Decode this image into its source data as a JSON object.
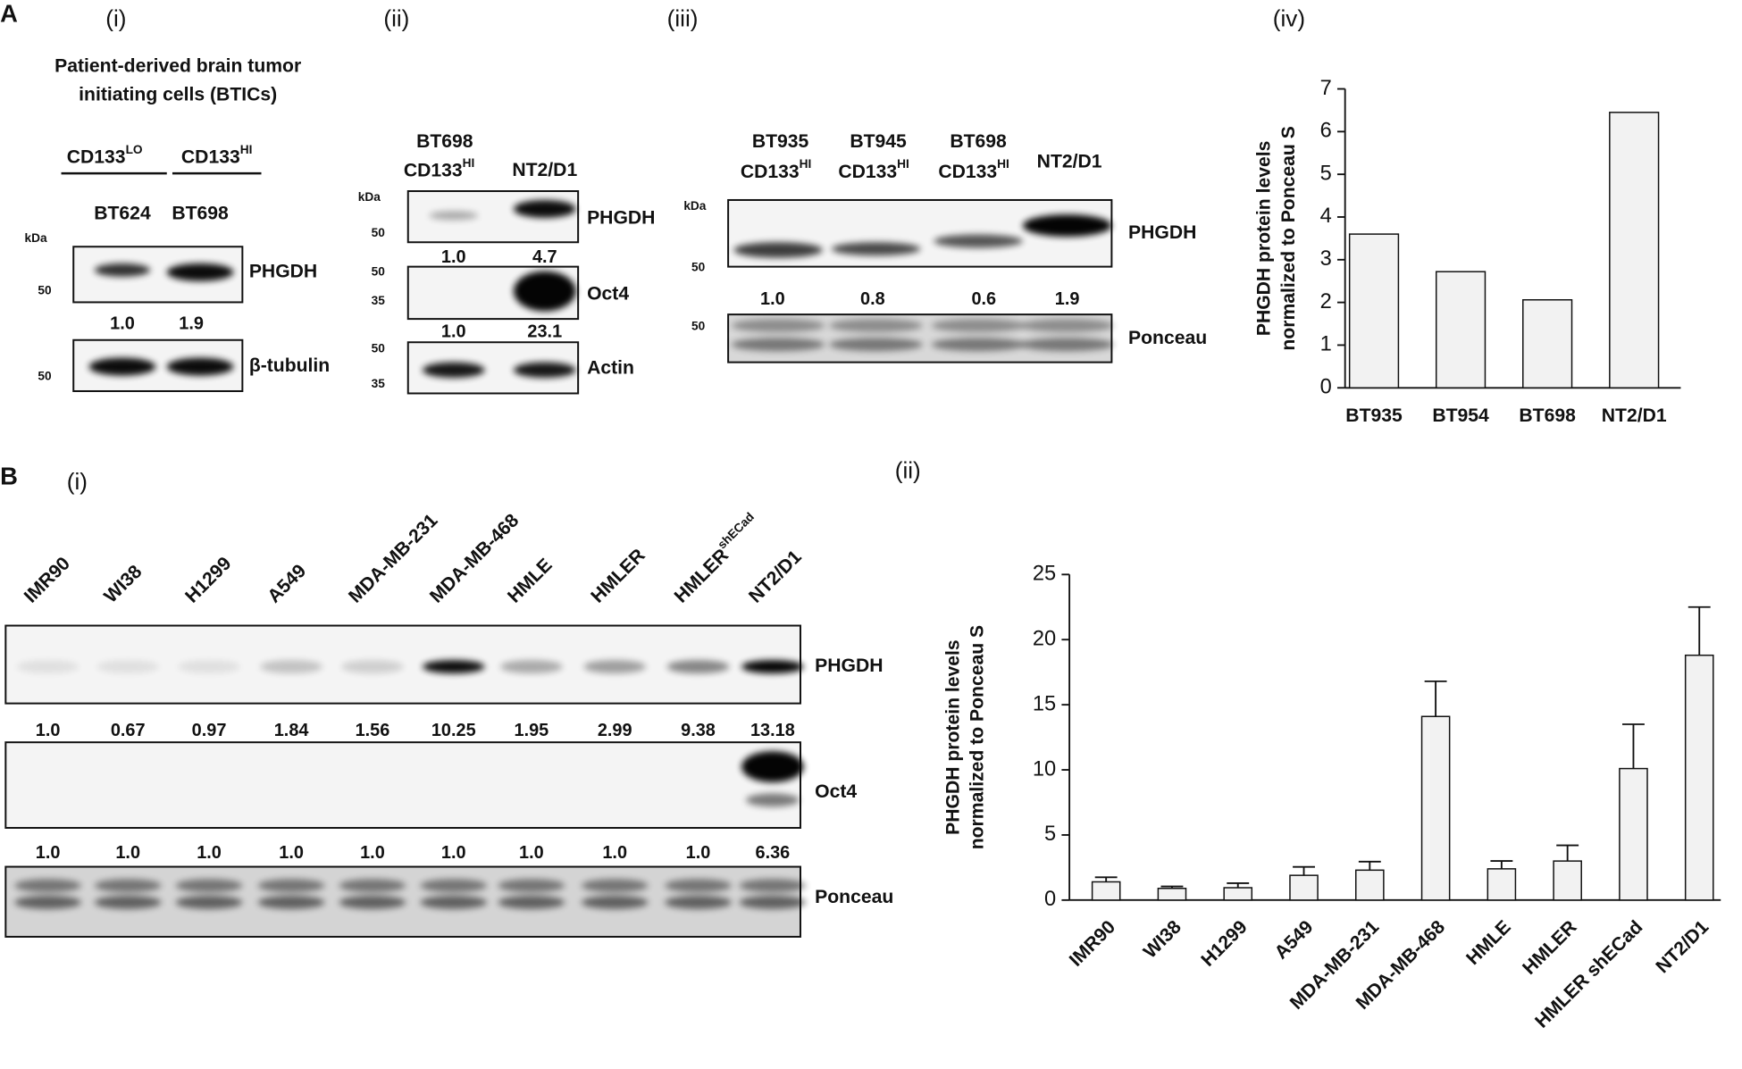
{
  "figure": {
    "A": {
      "label": "A",
      "i": {
        "label": "(i)",
        "title": [
          "Patient-derived  brain tumor",
          "initiating cells (BTICs)"
        ],
        "groups": [
          {
            "text": "CD133",
            "sup": "LO"
          },
          {
            "text": "CD133",
            "sup": "HI"
          }
        ],
        "lanes": [
          "BT624",
          "BT698"
        ],
        "kda": "kDa",
        "blots": [
          {
            "protein": "PHGDH",
            "markers": [
              "50"
            ],
            "quant": [
              "1.0",
              "1.9"
            ]
          },
          {
            "protein": "β-tubulin",
            "markers": [
              "50"
            ]
          }
        ]
      },
      "ii": {
        "label": "(ii)",
        "lanes": [
          {
            "line1": "BT698",
            "text": "CD133",
            "sup": "HI"
          },
          {
            "text": "NT2/D1"
          }
        ],
        "kda": "kDa",
        "blots": [
          {
            "protein": "PHGDH",
            "markers": [
              "50"
            ],
            "quant": [
              "1.0",
              "4.7"
            ]
          },
          {
            "protein": "Oct4",
            "markers": [
              "50",
              "35"
            ],
            "quant": [
              "1.0",
              "23.1"
            ]
          },
          {
            "protein": "Actin",
            "markers": [
              "50",
              "35"
            ]
          }
        ]
      },
      "iii": {
        "label": "(iii)",
        "lanes": [
          {
            "line1": "BT935",
            "text": "CD133",
            "sup": "HI"
          },
          {
            "line1": "BT945",
            "text": "CD133",
            "sup": "HI"
          },
          {
            "line1": "BT698",
            "text": "CD133",
            "sup": "HI"
          },
          {
            "text": "NT2/D1"
          }
        ],
        "kda": "kDa",
        "blots": [
          {
            "protein": "PHGDH",
            "markers": [
              "50"
            ],
            "quant": [
              "1.0",
              "0.8",
              "0.6",
              "1.9"
            ]
          },
          {
            "protein": "Ponceau",
            "markers": [
              "50"
            ]
          }
        ]
      },
      "iv": {
        "label": "(iv)"
      }
    },
    "B": {
      "label": "B",
      "i": {
        "label": "(i)",
        "lanes": [
          {
            "text": "IMR90"
          },
          {
            "text": "WI38"
          },
          {
            "text": "H1299"
          },
          {
            "text": "A549"
          },
          {
            "text": "MDA-MB-231"
          },
          {
            "text": "MDA-MB-468"
          },
          {
            "text": "HMLE"
          },
          {
            "text": "HMLER"
          },
          {
            "text": "HMLER",
            "sup": "shECad"
          },
          {
            "text": "NT2/D1"
          }
        ],
        "blots": [
          {
            "protein": "PHGDH",
            "quant": [
              "1.0",
              "0.67",
              "0.97",
              "1.84",
              "1.56",
              "10.25",
              "1.95",
              "2.99",
              "9.38",
              "13.18"
            ]
          },
          {
            "protein": "Oct4",
            "quant": [
              "1.0",
              "1.0",
              "1.0",
              "1.0",
              "1.0",
              "1.0",
              "1.0",
              "1.0",
              "1.0",
              "6.36"
            ]
          },
          {
            "protein": "Ponceau"
          }
        ]
      },
      "ii": {
        "label": "(ii)"
      }
    }
  },
  "chart_data": [
    {
      "type": "bar",
      "ylabel": [
        "PHGDH protein levels",
        "normalized to Ponceau S"
      ],
      "categories": [
        "BT935",
        "BT954",
        "BT698",
        "NT2/D1"
      ],
      "values": [
        3.6,
        2.72,
        2.06,
        6.45
      ],
      "color": "#f2f2f2",
      "ylim": [
        0,
        7
      ],
      "yticks": [
        0,
        1,
        2,
        3,
        4,
        5,
        6,
        7
      ]
    },
    {
      "type": "bar",
      "ylabel": [
        "PHGDH protein levels",
        "normalized to Ponceau S"
      ],
      "categories": [
        "IMR90",
        "WI38",
        "H1299",
        "A549",
        "MDA-MB-231",
        "MDA-MB-468",
        "HMLE",
        "HMLER",
        "HMLER shECad",
        "NT2/D1"
      ],
      "values": [
        1.4,
        0.9,
        0.95,
        1.9,
        2.3,
        14.1,
        2.4,
        3.0,
        10.1,
        18.8
      ],
      "errors": [
        0.35,
        0.15,
        0.35,
        0.65,
        0.65,
        2.7,
        0.6,
        1.2,
        3.4,
        3.7
      ],
      "color": "#f2f2f2",
      "ylim": [
        0,
        25
      ],
      "yticks": [
        0,
        5,
        10,
        15,
        20,
        25
      ]
    }
  ]
}
